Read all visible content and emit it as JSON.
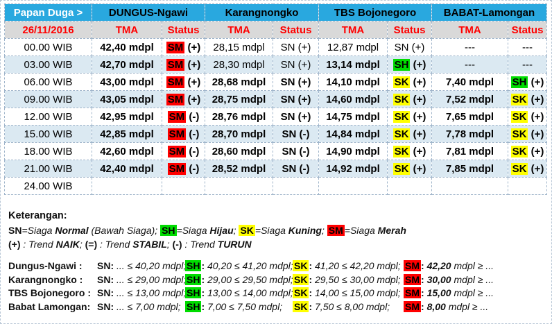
{
  "table": {
    "corner_label": "Papan Duga >",
    "date": "26/11/2016",
    "stations": [
      "DUNGUS-Ngawi",
      "Karangnongko",
      "TBS Bojonegoro",
      "BABAT-Lamongan"
    ],
    "col_headers": {
      "tma": "TMA",
      "status": "Status"
    },
    "rows": [
      {
        "time": "00.00 WIB",
        "cells": [
          {
            "tma": "42,40 mdpl",
            "code": "SM",
            "trend": "(+)",
            "chip": "red",
            "bold": true
          },
          {
            "tma": "28,15 mdpl",
            "code": "SN",
            "trend": "(+)",
            "chip": null,
            "bold": false
          },
          {
            "tma": "12,87 mdpl",
            "code": "SN",
            "trend": "(+)",
            "chip": null,
            "bold": false
          },
          {
            "tma": "---",
            "code": "---",
            "trend": "",
            "chip": null,
            "bold": false
          }
        ]
      },
      {
        "time": "03.00 WIB",
        "cells": [
          {
            "tma": "42,70 mdpl",
            "code": "SM",
            "trend": "(+)",
            "chip": "red",
            "bold": true
          },
          {
            "tma": "28,30 mdpl",
            "code": "SN",
            "trend": "(+)",
            "chip": null,
            "bold": false
          },
          {
            "tma": "13,14 mdpl",
            "code": "SH",
            "trend": "(+)",
            "chip": "green",
            "bold": true
          },
          {
            "tma": "---",
            "code": "---",
            "trend": "",
            "chip": null,
            "bold": false
          }
        ]
      },
      {
        "time": "06.00 WIB",
        "cells": [
          {
            "tma": "43,00 mdpl",
            "code": "SM",
            "trend": "(+)",
            "chip": "red",
            "bold": true
          },
          {
            "tma": "28,68 mdpl",
            "code": "SN",
            "trend": "(+)",
            "chip": null,
            "bold": true
          },
          {
            "tma": "14,10 mdpl",
            "code": "SK",
            "trend": "(+)",
            "chip": "yellow",
            "bold": true
          },
          {
            "tma": "7,40 mdpl",
            "code": "SH",
            "trend": "(+)",
            "chip": "green",
            "bold": true
          }
        ]
      },
      {
        "time": "09.00 WIB",
        "cells": [
          {
            "tma": "43,05 mdpl",
            "code": "SM",
            "trend": "(+)",
            "chip": "red",
            "bold": true
          },
          {
            "tma": "28,75 mdpl",
            "code": "SN",
            "trend": "(+)",
            "chip": null,
            "bold": true
          },
          {
            "tma": "14,60 mdpl",
            "code": "SK",
            "trend": "(+)",
            "chip": "yellow",
            "bold": true
          },
          {
            "tma": "7,52 mdpl",
            "code": "SK",
            "trend": "(+)",
            "chip": "yellow",
            "bold": true
          }
        ]
      },
      {
        "time": "12.00 WIB",
        "cells": [
          {
            "tma": "42,95 mdpl",
            "code": "SM",
            "trend": "(-)",
            "chip": "red",
            "bold": true
          },
          {
            "tma": "28,76 mdpl",
            "code": "SN",
            "trend": "(+)",
            "chip": null,
            "bold": true
          },
          {
            "tma": "14,75 mdpl",
            "code": "SK",
            "trend": "(+)",
            "chip": "yellow",
            "bold": true
          },
          {
            "tma": "7,65 mdpl",
            "code": "SK",
            "trend": "(+)",
            "chip": "yellow",
            "bold": true
          }
        ]
      },
      {
        "time": "15.00 WIB",
        "cells": [
          {
            "tma": "42,85 mdpl",
            "code": "SM",
            "trend": "(-)",
            "chip": "red",
            "bold": true
          },
          {
            "tma": "28,70 mdpl",
            "code": "SN",
            "trend": "(-)",
            "chip": null,
            "bold": true
          },
          {
            "tma": "14,84 mdpl",
            "code": "SK",
            "trend": "(+)",
            "chip": "yellow",
            "bold": true
          },
          {
            "tma": "7,78 mdpl",
            "code": "SK",
            "trend": "(+)",
            "chip": "yellow",
            "bold": true
          }
        ]
      },
      {
        "time": "18.00 WIB",
        "cells": [
          {
            "tma": "42,60 mdpl",
            "code": "SM",
            "trend": "(-)",
            "chip": "red",
            "bold": true
          },
          {
            "tma": "28,60 mdpl",
            "code": "SN",
            "trend": "(-)",
            "chip": null,
            "bold": true
          },
          {
            "tma": "14,90 mdpl",
            "code": "SK",
            "trend": "(+)",
            "chip": "yellow",
            "bold": true
          },
          {
            "tma": "7,81 mdpl",
            "code": "SK",
            "trend": "(+)",
            "chip": "yellow",
            "bold": true
          }
        ]
      },
      {
        "time": "21.00 WIB",
        "cells": [
          {
            "tma": "42,40 mdpl",
            "code": "SM",
            "trend": "(-)",
            "chip": "red",
            "bold": true
          },
          {
            "tma": "28,52 mdpl",
            "code": "SN",
            "trend": "(-)",
            "chip": null,
            "bold": true
          },
          {
            "tma": "14,92 mdpl",
            "code": "SK",
            "trend": "(+)",
            "chip": "yellow",
            "bold": true
          },
          {
            "tma": "7,85 mdpl",
            "code": "SK",
            "trend": "(+)",
            "chip": "yellow",
            "bold": true
          }
        ]
      },
      {
        "time": "24.00 WIB",
        "cells": [
          {
            "tma": "",
            "code": "",
            "trend": "",
            "chip": null,
            "bold": false
          },
          {
            "tma": "",
            "code": "",
            "trend": "",
            "chip": null,
            "bold": false
          },
          {
            "tma": "",
            "code": "",
            "trend": "",
            "chip": null,
            "bold": false
          },
          {
            "tma": "",
            "code": "",
            "trend": "",
            "chip": null,
            "bold": false
          }
        ]
      }
    ]
  },
  "keterangan": {
    "title": "Keterangan:",
    "lines": [
      {
        "segments": [
          {
            "t": "SN",
            "b": true
          },
          {
            "t": "=",
            "i": true
          },
          {
            "t": "Siaga ",
            "i": true
          },
          {
            "t": "Normal",
            "b": true,
            "i": true
          },
          {
            "t": " (Bawah Siaga);  ",
            "i": true
          },
          {
            "t": "SH",
            "b": true,
            "chip": "green"
          },
          {
            "t": "=",
            "i": true
          },
          {
            "t": "Siaga ",
            "i": true
          },
          {
            "t": "Hijau",
            "b": true,
            "i": true
          },
          {
            "t": ";  ",
            "i": true
          },
          {
            "t": "SK",
            "b": true,
            "chip": "yellow"
          },
          {
            "t": "=",
            "i": true
          },
          {
            "t": "Siaga ",
            "i": true
          },
          {
            "t": "Kuning",
            "b": true,
            "i": true
          },
          {
            "t": ";  ",
            "i": true
          },
          {
            "t": "SM",
            "b": true,
            "chip": "red"
          },
          {
            "t": "=",
            "i": true
          },
          {
            "t": "Siaga ",
            "i": true
          },
          {
            "t": "Merah",
            "b": true,
            "i": true
          }
        ]
      },
      {
        "segments": [
          {
            "t": "(+)",
            "b": true
          },
          {
            "t": " : ",
            "i": true
          },
          {
            "t": "Trend ",
            "i": true
          },
          {
            "t": "NAIK",
            "b": true,
            "i": true
          },
          {
            "t": "; ",
            "i": true
          },
          {
            "t": "(=)",
            "b": true
          },
          {
            "t": " : ",
            "i": true
          },
          {
            "t": "Trend ",
            "i": true
          },
          {
            "t": "STABIL",
            "b": true,
            "i": true
          },
          {
            "t": "; ",
            "i": true
          },
          {
            "t": "(-)",
            "b": true
          },
          {
            "t": " : ",
            "i": true
          },
          {
            "t": "Trend ",
            "i": true
          },
          {
            "t": "TURUN",
            "b": true,
            "i": true
          }
        ]
      }
    ],
    "thresholds": [
      {
        "name": [
          {
            "t": "Dungus-Ngawi :",
            "b": true
          }
        ],
        "sn": [
          {
            "t": "SN:",
            "b": true
          },
          {
            "t": " ... ≤ 40,20 mdpl;",
            "i": true
          }
        ],
        "sh": [
          {
            "t": "SH",
            "b": true,
            "chip": "green"
          },
          {
            "t": ":",
            "b": true
          },
          {
            "t": " 40,20 ≤ 41,20 mdpl;",
            "i": true
          }
        ],
        "sk": [
          {
            "t": "SK",
            "b": true,
            "chip": "yellow"
          },
          {
            "t": ":",
            "b": true
          },
          {
            "t": " 41,20 ≤ 42,20 mdpl;",
            "i": true
          }
        ],
        "sm": [
          {
            "t": "SM",
            "b": true,
            "chip": "red"
          },
          {
            "t": ":",
            "b": true
          },
          {
            "t": "  ",
            "i": true
          },
          {
            "t": "42,20",
            "b": true,
            "i": true
          },
          {
            "t": " mdpl ≥ ...",
            "i": true
          }
        ]
      },
      {
        "name": [
          {
            "t": "Karangnongko :",
            "b": true
          }
        ],
        "sn": [
          {
            "t": "SN:",
            "b": true
          },
          {
            "t": " ... ≤ 29,00 mdpl;",
            "i": true
          }
        ],
        "sh": [
          {
            "t": "SH",
            "b": true,
            "chip": "green"
          },
          {
            "t": ":",
            "b": true
          },
          {
            "t": " 29,00 ≤ 29,50 mdpl;",
            "i": true
          }
        ],
        "sk": [
          {
            "t": "SK",
            "b": true,
            "chip": "yellow"
          },
          {
            "t": ":",
            "b": true
          },
          {
            "t": " 29,50 ≤ 30,00 mdpl;",
            "i": true
          }
        ],
        "sm": [
          {
            "t": "SM",
            "b": true,
            "chip": "red"
          },
          {
            "t": ":",
            "b": true
          },
          {
            "t": "  ",
            "i": true
          },
          {
            "t": "30,00",
            "b": true,
            "i": true
          },
          {
            "t": " mdpl ≥ ...",
            "i": true
          }
        ]
      },
      {
        "name": [
          {
            "t": "TBS Bojonegoro :",
            "b": true
          }
        ],
        "sn": [
          {
            "t": "SN:",
            "b": true
          },
          {
            "t": " ... ≤ 13,00 mdpl;",
            "i": true
          }
        ],
        "sh": [
          {
            "t": "SH",
            "b": true,
            "chip": "green"
          },
          {
            "t": ":",
            "b": true
          },
          {
            "t": " 13,00 ≤ 14,00 mdpl;",
            "i": true
          }
        ],
        "sk": [
          {
            "t": "SK",
            "b": true,
            "chip": "yellow"
          },
          {
            "t": ":",
            "b": true
          },
          {
            "t": " 14,00 ≤ 15,00 mdpl;",
            "i": true
          }
        ],
        "sm": [
          {
            "t": "SM",
            "b": true,
            "chip": "red"
          },
          {
            "t": ":",
            "b": true
          },
          {
            "t": "  ",
            "i": true
          },
          {
            "t": "15,00",
            "b": true,
            "i": true
          },
          {
            "t": " mdpl ≥ ...",
            "i": true
          }
        ]
      },
      {
        "name": [
          {
            "t": "Babat Lamongan:",
            "b": true
          }
        ],
        "sn": [
          {
            "t": "SN:",
            "b": true
          },
          {
            "t": " ... ≤ 7,00 mdpl;",
            "i": true
          }
        ],
        "sh": [
          {
            "t": "SH",
            "b": true,
            "chip": "green"
          },
          {
            "t": ":",
            "b": true
          },
          {
            "t": " 7,00 ≤ 7,50 mdpl;",
            "i": true
          }
        ],
        "sk": [
          {
            "t": "SK",
            "b": true,
            "chip": "yellow"
          },
          {
            "t": ":",
            "b": true
          },
          {
            "t": " 7,50 ≤ 8,00 mdpl;",
            "i": true
          }
        ],
        "sm": [
          {
            "t": "SM",
            "b": true,
            "chip": "red"
          },
          {
            "t": ":",
            "b": true
          },
          {
            "t": "  ",
            "i": true
          },
          {
            "t": "8,00",
            "b": true,
            "i": true
          },
          {
            "t": " mdpl ≥ ...",
            "i": true
          }
        ]
      }
    ]
  }
}
